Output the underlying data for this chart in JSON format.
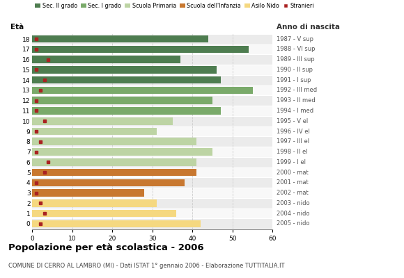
{
  "ages": [
    18,
    17,
    16,
    15,
    14,
    13,
    12,
    11,
    10,
    9,
    8,
    7,
    6,
    5,
    4,
    3,
    2,
    1,
    0
  ],
  "right_labels": [
    "1987 - V sup",
    "1988 - VI sup",
    "1989 - III sup",
    "1990 - II sup",
    "1991 - I sup",
    "1992 - III med",
    "1993 - II med",
    "1994 - I med",
    "1995 - V el",
    "1996 - IV el",
    "1997 - III el",
    "1998 - II el",
    "1999 - I el",
    "2000 - mat",
    "2001 - mat",
    "2002 - mat",
    "2003 - nido",
    "2004 - nido",
    "2005 - nido"
  ],
  "bar_values": [
    44,
    54,
    37,
    46,
    47,
    55,
    45,
    47,
    35,
    31,
    41,
    45,
    41,
    41,
    38,
    28,
    31,
    36,
    42
  ],
  "stranieri_values": [
    1,
    1,
    4,
    1,
    3,
    2,
    1,
    1,
    3,
    1,
    2,
    1,
    4,
    3,
    1,
    1,
    2,
    3,
    2
  ],
  "bar_colors": [
    "#4e7d50",
    "#4e7d50",
    "#4e7d50",
    "#4e7d50",
    "#4e7d50",
    "#7aaa6a",
    "#7aaa6a",
    "#7aaa6a",
    "#bdd4a4",
    "#bdd4a4",
    "#bdd4a4",
    "#bdd4a4",
    "#bdd4a4",
    "#c87830",
    "#c87830",
    "#c87830",
    "#f5d880",
    "#f5d880",
    "#f5d880"
  ],
  "legend_labels": [
    "Sec. II grado",
    "Sec. I grado",
    "Scuola Primaria",
    "Scuola dell'Infanzia",
    "Asilo Nido",
    "Stranieri"
  ],
  "legend_colors": [
    "#4e7d50",
    "#7aaa6a",
    "#bdd4a4",
    "#c87830",
    "#f5d880",
    "#aa2222"
  ],
  "title": "Popolazione per età scolastica - 2006",
  "subtitle": "COMUNE DI CERRO AL LAMBRO (MI) - Dati ISTAT 1° gennaio 2006 - Elaborazione TUTTITALIA.IT",
  "xlabel_left": "Età",
  "xlabel_right": "Anno di nascita",
  "xlim": [
    0,
    60
  ],
  "xticks": [
    0,
    10,
    20,
    30,
    40,
    50,
    60
  ],
  "stranieri_color": "#aa2222",
  "grid_color": "#cccccc",
  "row_colors": [
    "#ebebeb",
    "#f8f8f8"
  ]
}
